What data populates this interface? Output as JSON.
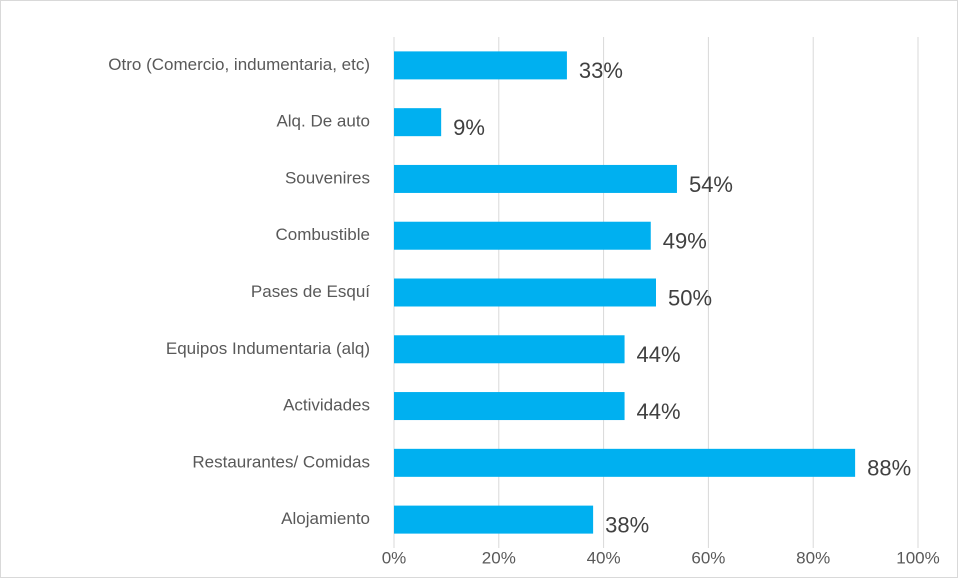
{
  "chart_data": {
    "type": "bar",
    "orientation": "horizontal",
    "categories": [
      "Otro (Comercio, indumentaria, etc)",
      "Alq. De auto",
      "Souvenires",
      "Combustible",
      "Pases de Esquí",
      "Equipos Indumentaria (alq)",
      "Actividades",
      "Restaurantes/ Comidas",
      "Alojamiento"
    ],
    "values": [
      33,
      9,
      54,
      49,
      50,
      44,
      44,
      88,
      38
    ],
    "value_labels": [
      "33%",
      "9%",
      "54%",
      "49%",
      "50%",
      "44%",
      "44%",
      "88%",
      "38%"
    ],
    "color": "#00b0f0",
    "xlim": [
      0,
      100
    ],
    "xticks": [
      {
        "value": 0,
        "label": "0%"
      },
      {
        "value": 20,
        "label": "20%"
      },
      {
        "value": 40,
        "label": "40%"
      },
      {
        "value": 60,
        "label": "60%"
      },
      {
        "value": 80,
        "label": "80%"
      },
      {
        "value": 100,
        "label": "100%"
      }
    ],
    "grid": true
  }
}
